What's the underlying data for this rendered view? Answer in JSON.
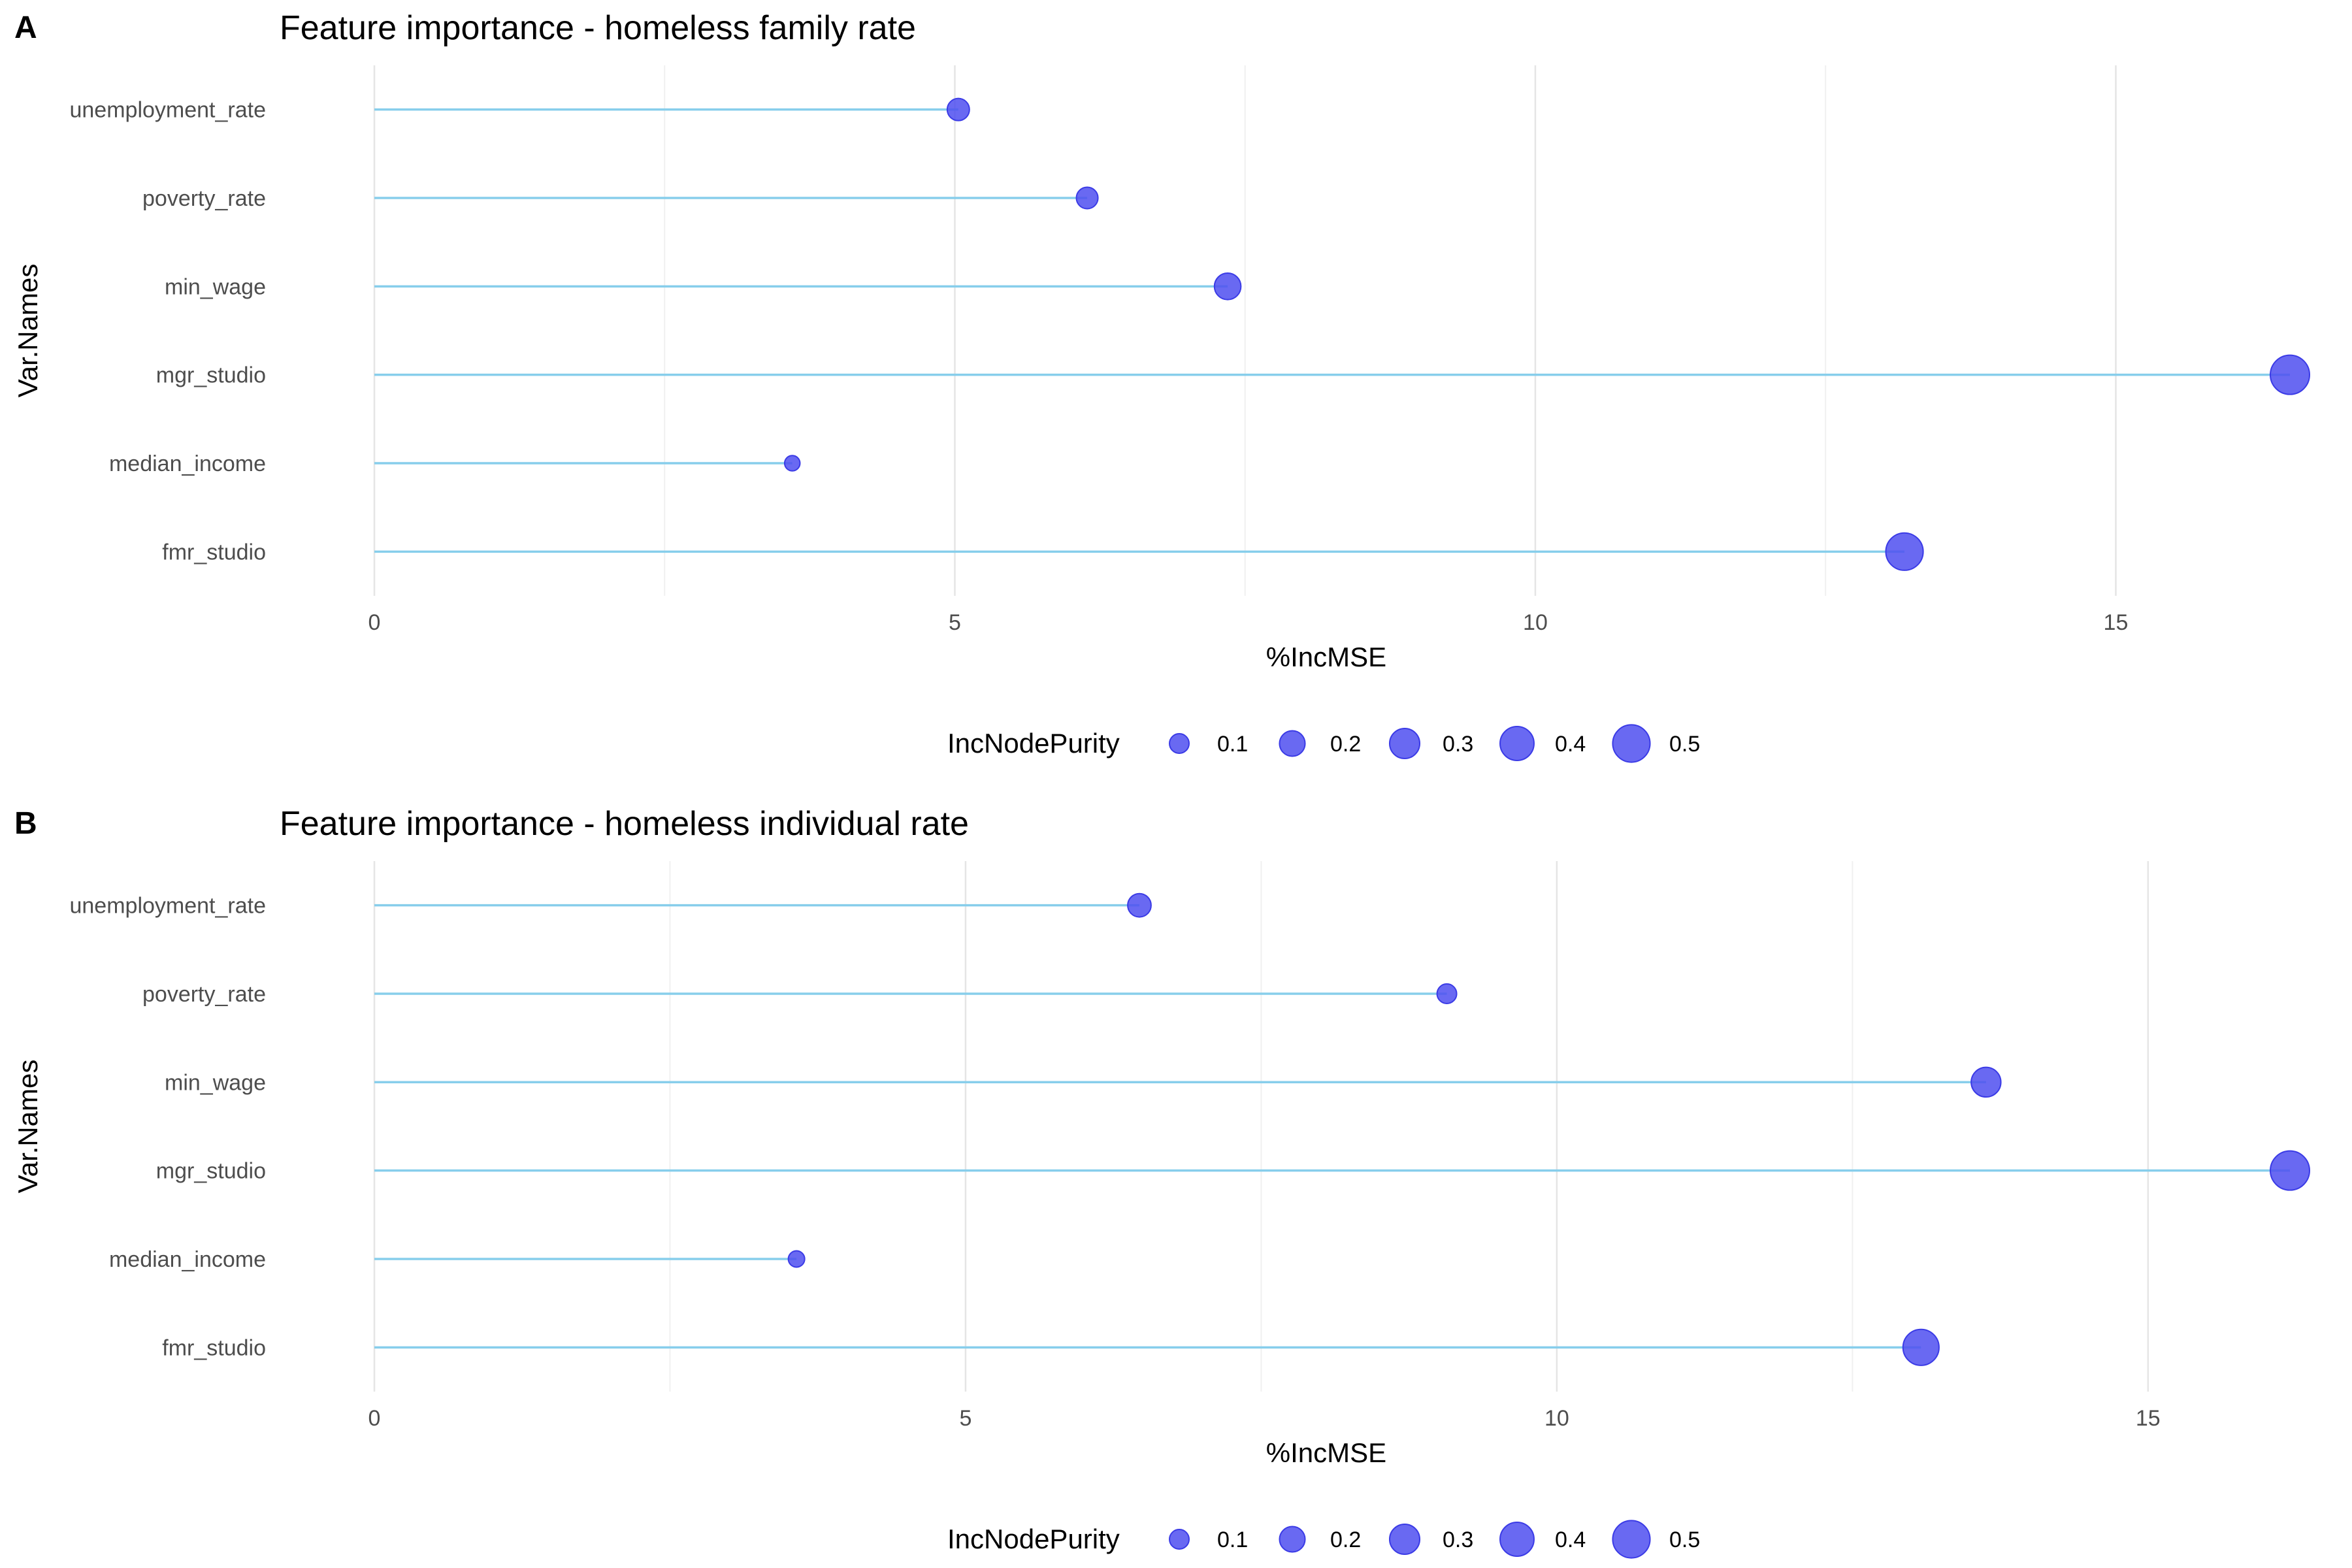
{
  "chart_data": [
    {
      "type": "lollipop",
      "panel_tag": "A",
      "title": "Feature importance - homeless family rate",
      "xlabel": "%IncMSE",
      "ylabel": "Var.Names",
      "xlim": [
        0,
        16.5
      ],
      "x_ticks": [
        0,
        5,
        10,
        15
      ],
      "grid": true,
      "categories": [
        "unemployment_rate",
        "poverty_rate",
        "min_wage",
        "mgr_studio",
        "median_income",
        "fmr_studio"
      ],
      "values": [
        5.03,
        6.14,
        7.35,
        16.5,
        3.6,
        13.18
      ],
      "size_values": [
        0.14,
        0.13,
        0.22,
        0.56,
        0.05,
        0.5
      ],
      "size_legend": {
        "title": "IncNodePurity",
        "values": [
          0.1,
          0.2,
          0.3,
          0.4,
          0.5
        ],
        "labels": [
          "0.1",
          "0.2",
          "0.3",
          "0.4",
          "0.5"
        ]
      },
      "colors": {
        "stem": "#87ceeb",
        "point": "#4f4ff0"
      }
    },
    {
      "type": "lollipop",
      "panel_tag": "B",
      "title": "Feature importance - homeless individual rate",
      "xlabel": "%IncMSE",
      "ylabel": "Var.Names",
      "xlim": [
        0,
        16.2
      ],
      "x_ticks": [
        0,
        5,
        10,
        15
      ],
      "grid": true,
      "categories": [
        "unemployment_rate",
        "poverty_rate",
        "min_wage",
        "mgr_studio",
        "median_income",
        "fmr_studio"
      ],
      "values": [
        6.47,
        9.07,
        13.63,
        16.2,
        3.57,
        13.08
      ],
      "size_values": [
        0.16,
        0.1,
        0.29,
        0.56,
        0.06,
        0.46
      ],
      "size_legend": {
        "title": "IncNodePurity",
        "values": [
          0.1,
          0.2,
          0.3,
          0.4,
          0.5
        ],
        "labels": [
          "0.1",
          "0.2",
          "0.3",
          "0.4",
          "0.5"
        ]
      },
      "colors": {
        "stem": "#87ceeb",
        "point": "#4f4ff0"
      }
    }
  ]
}
